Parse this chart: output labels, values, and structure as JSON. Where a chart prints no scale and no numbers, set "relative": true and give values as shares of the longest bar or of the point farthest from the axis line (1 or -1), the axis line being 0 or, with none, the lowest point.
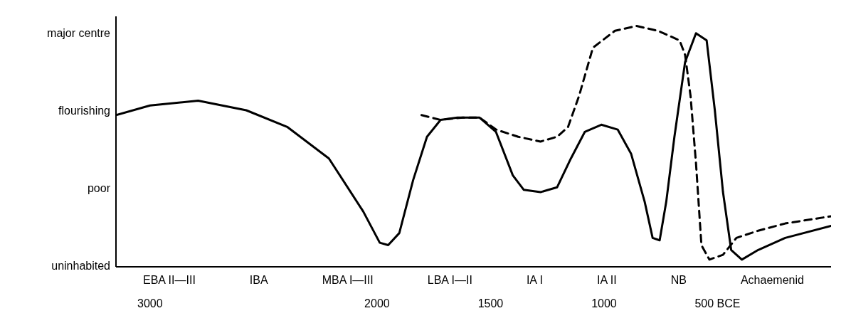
{
  "chart_data": {
    "type": "line",
    "relative": true,
    "xlim": [
      3150,
      0
    ],
    "xticks": [
      3000,
      2000,
      1500,
      1000,
      {
        "value": 500,
        "label": "500 BCE"
      }
    ],
    "grid": false,
    "legend": false,
    "marker": "none",
    "series": [
      {
        "color": "#000000",
        "line_style": "solid",
        "x": [
          3150,
          3000,
          2788,
          2576,
          2394,
          2212,
          2061,
          1988,
          1951,
          1902,
          1841,
          1780,
          1720,
          1646,
          1549,
          1476,
          1402,
          1354,
          1280,
          1207,
          1146,
          1085,
          1012,
          940,
          881,
          821,
          786,
          755,
          726,
          690,
          643,
          595,
          548,
          512,
          476,
          440,
          393,
          321,
          202,
          0
        ],
        "values": [
          0.63,
          0.67,
          0.69,
          0.65,
          0.58,
          0.45,
          0.23,
          0.1,
          0.09,
          0.14,
          0.36,
          0.54,
          0.61,
          0.62,
          0.62,
          0.56,
          0.38,
          0.32,
          0.31,
          0.33,
          0.45,
          0.56,
          0.59,
          0.57,
          0.47,
          0.27,
          0.12,
          0.11,
          0.27,
          0.54,
          0.85,
          0.97,
          0.94,
          0.65,
          0.31,
          0.07,
          0.03,
          0.07,
          0.12,
          0.17
        ]
      },
      {
        "color": "#000000",
        "line_style": "dashed",
        "x": [
          1804,
          1720,
          1622,
          1549,
          1476,
          1378,
          1280,
          1207,
          1159,
          1110,
          1049,
          952,
          857,
          762,
          667,
          643,
          619,
          595,
          571,
          536,
          476,
          417,
          321,
          202,
          0
        ],
        "values": [
          0.63,
          0.61,
          0.62,
          0.62,
          0.57,
          0.54,
          0.52,
          0.54,
          0.58,
          0.71,
          0.91,
          0.98,
          1,
          0.98,
          0.94,
          0.88,
          0.71,
          0.43,
          0.09,
          0.03,
          0.05,
          0.12,
          0.15,
          0.18,
          0.21
        ]
      }
    ],
    "annotations": [
      "uninhabited",
      "poor",
      "flourishing",
      "major centre",
      "EBA II—III",
      "IBA",
      "MBA I—III",
      "LBA I—II",
      "IA I",
      "IA II",
      "NB",
      "Achaemenid"
    ]
  }
}
